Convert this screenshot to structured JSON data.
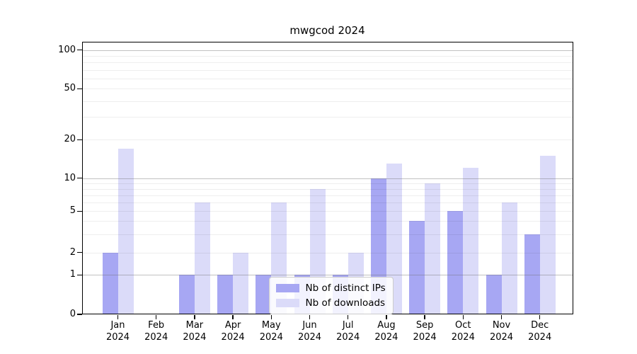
{
  "title": "mwgcod 2024",
  "legend": {
    "items": [
      {
        "label": "Nb of distinct IPs",
        "color": "#a7a7f3"
      },
      {
        "label": "Nb of downloads",
        "color": "#dbdbf9"
      }
    ]
  },
  "y_axis": {
    "tick_labels": [
      "100",
      "50",
      "20",
      "10",
      "5",
      "2",
      "1",
      "0"
    ],
    "tick_values": [
      100,
      50,
      20,
      10,
      5,
      2,
      1,
      0
    ]
  },
  "x_axis": {
    "labels": [
      "Jan 2024",
      "Feb 2024",
      "Mar 2024",
      "Apr 2024",
      "May 2024",
      "Jun 2024",
      "Jul 2024",
      "Aug 2024",
      "Sep 2024",
      "Oct 2024",
      "Nov 2024",
      "Dec 2024"
    ]
  },
  "chart_data": {
    "type": "bar",
    "title": "mwgcod 2024",
    "categories": [
      "Jan 2024",
      "Feb 2024",
      "Mar 2024",
      "Apr 2024",
      "May 2024",
      "Jun 2024",
      "Jul 2024",
      "Aug 2024",
      "Sep 2024",
      "Oct 2024",
      "Nov 2024",
      "Dec 2024"
    ],
    "series": [
      {
        "name": "Nb of distinct IPs",
        "color": "#a7a7f3",
        "values": [
          2,
          0,
          1,
          1,
          1,
          1,
          1,
          10,
          4,
          5,
          1,
          3
        ]
      },
      {
        "name": "Nb of downloads",
        "color": "#dbdbf9",
        "values": [
          17,
          0,
          6,
          2,
          6,
          8,
          2,
          13,
          9,
          12,
          6,
          15
        ]
      }
    ],
    "yscale": "log above 1, linear 0-1 (symlog-like)",
    "y_ticks": [
      0,
      1,
      2,
      5,
      10,
      20,
      50,
      100
    ],
    "ylim": [
      0,
      116
    ],
    "grid": "on",
    "legend_position": "lower center"
  }
}
